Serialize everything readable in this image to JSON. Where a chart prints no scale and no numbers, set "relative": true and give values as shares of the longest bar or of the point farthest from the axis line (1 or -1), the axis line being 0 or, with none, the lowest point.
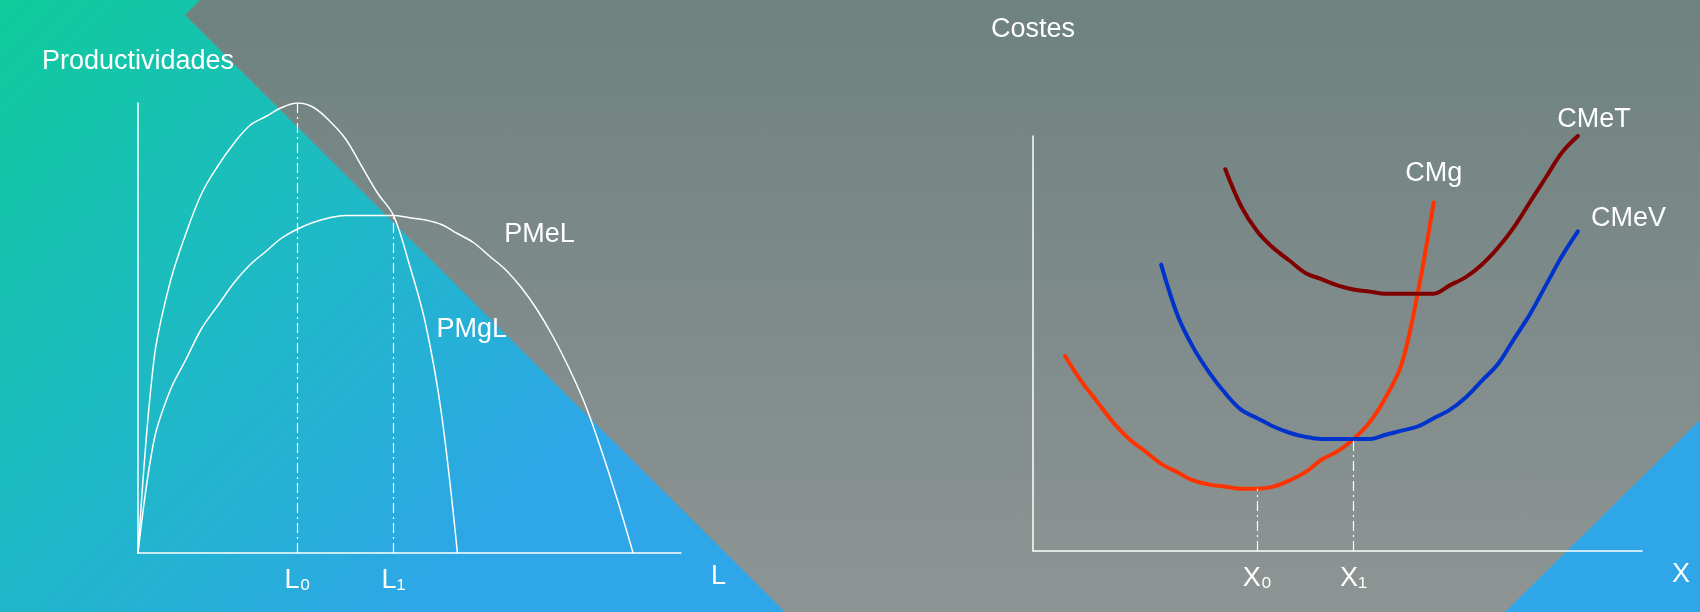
{
  "chart_data": [
    {
      "type": "line",
      "relative": true,
      "xlabel": "L",
      "ylabel": "Productividades",
      "grid": false,
      "legend": false,
      "marker": "none",
      "line_style": "solid",
      "categories": [
        null,
        null,
        null,
        null,
        null,
        null,
        null,
        null,
        null,
        null,
        "L₀",
        null,
        null,
        null,
        null,
        null,
        "L₁",
        null,
        null,
        null,
        null,
        null,
        null,
        null,
        null,
        null,
        null,
        null,
        null,
        null,
        null,
        null,
        null,
        null,
        null
      ],
      "series": [
        {
          "name": "PMgL",
          "color": "#ffffff",
          "values": [
            0,
            0.43,
            0.6,
            0.71,
            0.8,
            0.86,
            0.91,
            0.95,
            0.97,
            0.99,
            1,
            0.99,
            0.96,
            0.92,
            0.86,
            0.8,
            0.75,
            0.64,
            0.51,
            0.31,
            0,
            null,
            null,
            null,
            null,
            null,
            null,
            null,
            null,
            null,
            null,
            null,
            null,
            null,
            null
          ]
        },
        {
          "name": "PMeL",
          "color": "#ffffff",
          "values": [
            0,
            0.25,
            0.36,
            0.43,
            0.5,
            0.55,
            0.6,
            0.64,
            0.67,
            0.7,
            0.72,
            0.735,
            0.745,
            0.75,
            0.75,
            0.75,
            0.75,
            0.745,
            0.74,
            0.73,
            0.71,
            0.69,
            0.66,
            0.63,
            0.59,
            0.54,
            0.48,
            0.41,
            0.33,
            0.23,
            0.12,
            0,
            null,
            null,
            null
          ]
        }
      ],
      "ref_lines": [
        {
          "axis": "x",
          "value": "L₀",
          "color": "#ffffff",
          "line_style": "dashed"
        },
        {
          "axis": "x",
          "value": "L₁",
          "color": "#ffffff",
          "line_style": "dashed"
        }
      ]
    },
    {
      "type": "line",
      "relative": true,
      "xlabel": "X",
      "ylabel": "Costes",
      "grid": false,
      "legend": false,
      "marker": "none",
      "line_style": "solid",
      "categories": [
        null,
        null,
        null,
        null,
        null,
        null,
        null,
        null,
        null,
        null,
        null,
        null,
        null,
        null,
        "X₀",
        null,
        null,
        null,
        null,
        null,
        "X₁",
        null,
        null,
        null,
        null,
        null,
        null,
        null,
        null,
        null,
        null,
        null,
        null,
        null,
        null,
        null,
        null,
        null,
        null
      ],
      "series": [
        {
          "name": "CMg",
          "color": "#ff3300",
          "values": [
            null,
            null,
            0.47,
            0.41,
            0.36,
            0.31,
            0.27,
            0.24,
            0.21,
            0.19,
            0.17,
            0.16,
            0.155,
            0.15,
            0.15,
            0.155,
            0.17,
            0.19,
            0.22,
            0.24,
            0.27,
            0.31,
            0.37,
            0.45,
            0.62,
            0.84,
            null,
            null,
            null,
            null,
            null,
            null,
            null,
            null,
            null,
            null,
            null,
            null,
            null
          ]
        },
        {
          "name": "CMeV",
          "color": "#0033cc",
          "values": [
            null,
            null,
            null,
            null,
            null,
            null,
            null,
            null,
            0.69,
            0.57,
            0.49,
            0.43,
            0.38,
            0.34,
            0.32,
            0.3,
            0.285,
            0.275,
            0.27,
            0.27,
            0.27,
            0.27,
            0.28,
            0.29,
            0.3,
            0.32,
            0.34,
            0.37,
            0.41,
            0.45,
            0.51,
            0.57,
            0.64,
            0.71,
            0.77,
            null,
            null,
            null,
            null
          ]
        },
        {
          "name": "CMeT",
          "color": "#800000",
          "values": [
            null,
            null,
            null,
            null,
            null,
            null,
            null,
            null,
            null,
            null,
            null,
            null,
            0.92,
            0.83,
            0.77,
            0.73,
            0.7,
            0.67,
            0.655,
            0.64,
            0.63,
            0.625,
            0.62,
            0.62,
            0.62,
            0.62,
            0.64,
            0.66,
            0.69,
            0.73,
            0.78,
            0.84,
            0.9,
            0.96,
            1,
            null,
            null,
            null,
            null
          ]
        }
      ],
      "ref_lines": [
        {
          "axis": "x",
          "value": "X₀",
          "color": "#ffffff",
          "line_style": "dashed"
        },
        {
          "axis": "x",
          "value": "X₁",
          "color": "#ffffff",
          "line_style": "dashed"
        }
      ]
    }
  ]
}
